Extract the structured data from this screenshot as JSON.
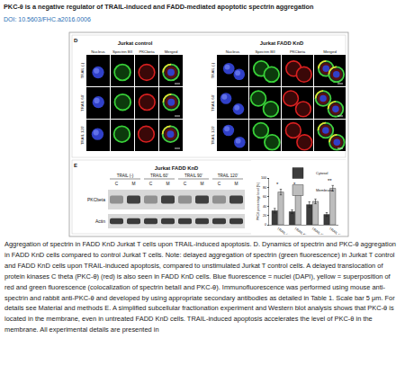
{
  "header": {
    "title": "PKC-θ is a negative regulator of TRAIL-induced and FADD-mediated apoptotic spectrin aggregation",
    "doi": "DOI: 10.5603/FHC.a2016.0006"
  },
  "panel_d": {
    "label": "D",
    "groups": [
      "Jurkat control",
      "Jurkat FADD KnD"
    ],
    "columns": [
      "Nucleus",
      "Spectrin BII",
      "PKCbeta",
      "Merged"
    ],
    "rows": [
      "TRAIL (-)",
      "TRAIL 60'",
      "TRAIL 120'"
    ]
  },
  "panel_e": {
    "label": "E",
    "title": "Jurkat FADD KnD",
    "groups": [
      "TRAIL (-)",
      "TRAIL 60'",
      "TRAIL 90'",
      "TRAIL 120'"
    ],
    "lanes": [
      "C",
      "M"
    ],
    "rows": [
      "PKCbeta",
      "Actin"
    ]
  },
  "chart_data": {
    "type": "bar",
    "categories": [
      "TRAIL (-)",
      "TRAIL 60'",
      "TRAIL 90'",
      "TRAIL 120'"
    ],
    "series": [
      {
        "name": "Cytosol",
        "color": "#3c3c3c",
        "values": [
          30,
          28,
          43,
          22
        ],
        "errors": [
          5,
          4,
          6,
          4
        ]
      },
      {
        "name": "Membrane",
        "color": "#bdbdbd",
        "values": [
          70,
          72,
          50,
          78
        ],
        "errors": [
          6,
          5,
          5,
          6
        ]
      }
    ],
    "ylabel": "PKCθ percentage level (%)",
    "ylim": [
      0,
      100
    ],
    "yticks": [
      0,
      20,
      40,
      60,
      80,
      100
    ],
    "significance": [
      "*",
      "*",
      null,
      "**"
    ],
    "legend": "top right",
    "grid": false
  },
  "caption": "Aggregation of spectrin in FADD KnD Jurkat T cells upon TRAIL-induced apoptosis. D. Dynamics of spectrin and PKC-θ aggregation in FADD KnD cells compared to control Jurkat T cells. Note: delayed aggregation of spectrin (green fluorescence) in Jurkat T control and FADD KnD cells upon TRAIL-induced apoptosis, compared to unstimulated Jurkat T control cells. A delayed translocation of protein kinases C theta (PKC-θ) (red) is also seen in FADD KnD cells. Blue fluorescence = nuclei (DAPI), yellow = superposition of red and green fluorescence (colocalization of spectrin betaII and PKC-θ). Immunofluorescence was performed using mouse anti-spectrin and rabbit anti-PKC-θ and developed by using appropriate secondary antibodies as detailed in Table 1. Scale bar 5 μm. For details see Material and methods E. A simplified subcellular fractionation experiment and Western blot analysis shows that PKC-θ is located in the membrane, even in untreated FADD KnD cells. TRAIL-induced apoptosis accelerates the level of PKC-θ in the membrane. All experimental details are presented in"
}
